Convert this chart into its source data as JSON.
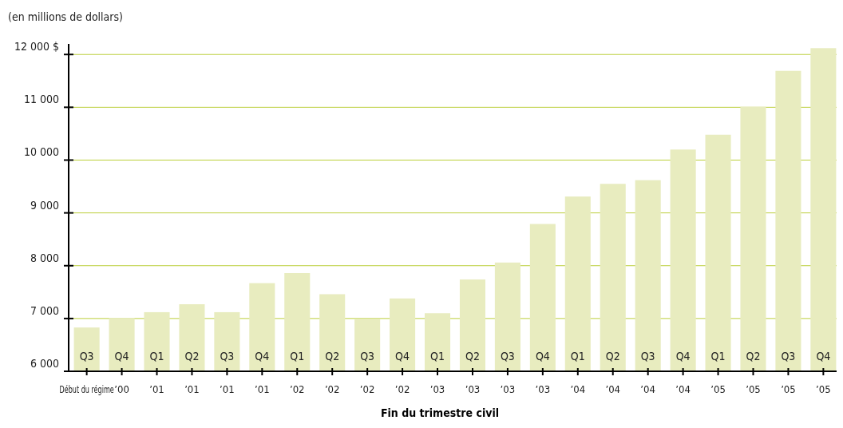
{
  "chart_data": {
    "type": "bar",
    "subtitle": "(en millions de dollars)",
    "xlabel": "Fin du trimestre civil",
    "categories": [
      "Q3\nDébut du régime",
      "Q4\n’00",
      "Q1\n’01",
      "Q2\n’01",
      "Q3\n’01",
      "Q4\n’01",
      "Q1\n’02",
      "Q2\n’02",
      "Q3\n’02",
      "Q4\n’02",
      "Q1\n’03",
      "Q2\n’03",
      "Q3\n’03",
      "Q4\n’03",
      "Q1\n’04",
      "Q2\n’04",
      "Q3\n’04",
      "Q4\n’04",
      "Q1\n’05",
      "Q2\n’05",
      "Q3\n’05",
      "Q4\n’05"
    ],
    "values": [
      6830,
      7010,
      7120,
      7270,
      7120,
      7670,
      7860,
      7460,
      6990,
      7380,
      7100,
      7740,
      8060,
      8790,
      9310,
      9550,
      9620,
      10200,
      10480,
      11010,
      11690,
      12120
    ],
    "color": "#e8ecbf",
    "ylim": [
      6000,
      12200
    ],
    "yticks": [
      {
        "value": 6000,
        "label": "6 000"
      },
      {
        "value": 7000,
        "label": "7 000"
      },
      {
        "value": 8000,
        "label": "8 000"
      },
      {
        "value": 9000,
        "label": "9 000"
      },
      {
        "value": 10000,
        "label": "10 000"
      },
      {
        "value": 11000,
        "label": "11 000"
      },
      {
        "value": 12000,
        "label": "12 000 $"
      }
    ],
    "grid": "y"
  }
}
